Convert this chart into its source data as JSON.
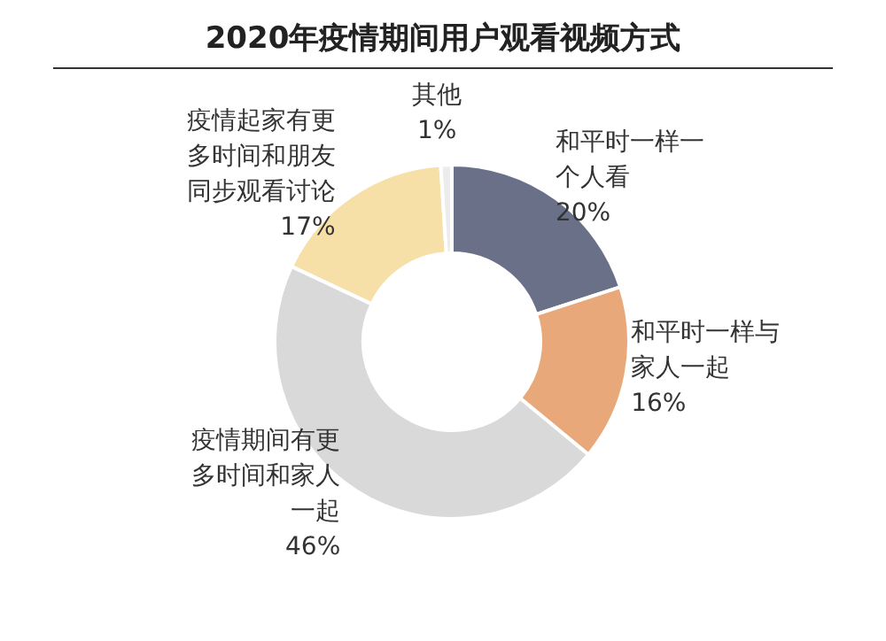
{
  "chart_data": {
    "type": "donut",
    "title": "2020年疫情期间用户观看视频方式",
    "categories": [
      "和平时一样一个人看",
      "和平时一样与家人一起",
      "疫情期间有更多时间和家人一起",
      "疫情起家有更多时间和朋友同步观看讨论",
      "其他"
    ],
    "values": [
      20,
      16,
      46,
      17,
      1
    ],
    "value_labels": [
      "20%",
      "16%",
      "46%",
      "17%",
      "1%"
    ],
    "colors": [
      "#6b7089",
      "#e9a87a",
      "#d9d9d9",
      "#f7dfa8",
      "#ececec"
    ]
  }
}
